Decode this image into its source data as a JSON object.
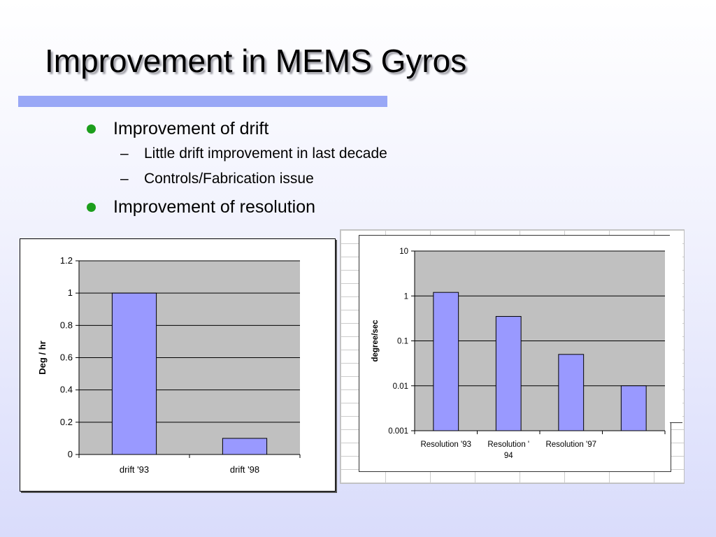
{
  "slide": {
    "title": "Improvement in MEMS Gyros",
    "bullets": {
      "b1": "Improvement of drift",
      "b1_sub1": "Little drift improvement in last decade",
      "b1_sub2": "Controls/Fabrication issue",
      "b2": "Improvement of resolution"
    },
    "dash": "–"
  },
  "colors": {
    "title_bar": "#99a8f6",
    "bullet_dot": "#1c9e1c",
    "bar_fill": "#9999ff",
    "plot_area": "#c0c0c0"
  },
  "chart_data": [
    {
      "type": "bar",
      "categories": [
        "drift '93",
        "drift '98"
      ],
      "values": [
        1,
        0.1
      ],
      "ylabel": "Deg / hr",
      "ylim": [
        0,
        1.2
      ],
      "yticks": [
        "0",
        "0.2",
        "0.4",
        "0.6",
        "0.8",
        "1",
        "1.2"
      ],
      "grid": true
    },
    {
      "type": "bar",
      "yscale": "log",
      "categories": [
        "Resolution '93",
        "Resolution '\n94",
        "Resolution '97",
        ""
      ],
      "values": [
        1.2,
        0.35,
        0.05,
        0.01
      ],
      "ylabel": "degree/sec",
      "ylim": [
        0.001,
        10
      ],
      "yticks": [
        "0.001",
        "0.01",
        "0.1",
        "1",
        "10"
      ],
      "grid": true
    }
  ]
}
